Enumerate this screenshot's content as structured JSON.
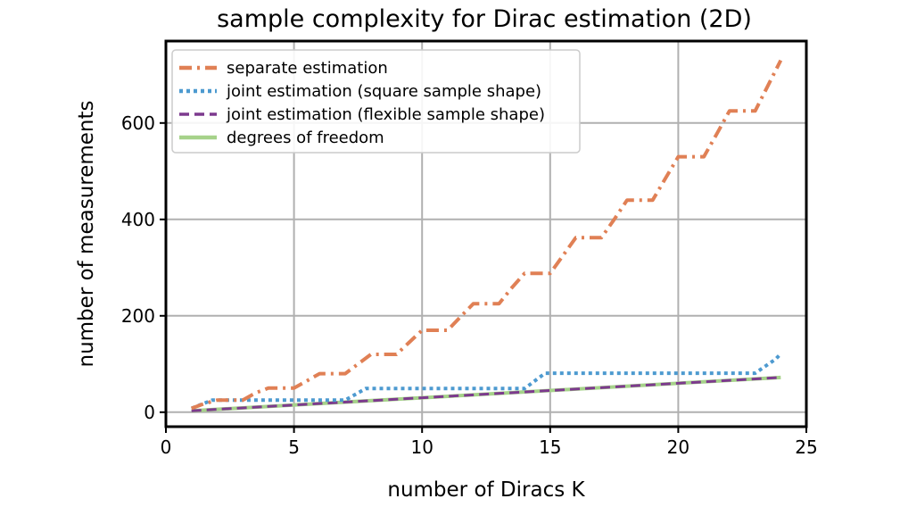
{
  "chart_data": {
    "type": "line",
    "title": "sample complexity for Dirac estimation (2D)",
    "xlabel": "number of Diracs K",
    "ylabel": "number of measurements",
    "xlim": [
      0,
      25
    ],
    "ylim": [
      -30,
      770
    ],
    "xticks": [
      0,
      5,
      10,
      15,
      20,
      25
    ],
    "yticks": [
      0,
      200,
      400,
      600
    ],
    "grid": true,
    "legend_position": "top-left",
    "series": [
      {
        "name": "separate estimation",
        "style": "dash-dot",
        "color": "#e08055",
        "x": [
          1,
          1.5,
          2,
          3,
          3.5,
          4,
          5,
          5.5,
          6,
          7,
          7.5,
          8,
          9,
          9.5,
          10,
          11,
          11.5,
          12,
          13,
          13.5,
          14,
          15,
          15.5,
          16,
          17,
          17.5,
          18,
          19,
          19.5,
          20,
          21,
          21.5,
          22,
          23,
          24
        ],
        "y": [
          8,
          18,
          25,
          25,
          40,
          50,
          50,
          65,
          80,
          80,
          100,
          120,
          120,
          145,
          170,
          170,
          198,
          225,
          225,
          258,
          288,
          288,
          325,
          362,
          362,
          400,
          440,
          440,
          485,
          530,
          530,
          577,
          625,
          625,
          730
        ]
      },
      {
        "name": "joint estimation (square sample shape)",
        "style": "dotted",
        "color": "#4d9ad0",
        "x": [
          1,
          1.8,
          2,
          7,
          7.8,
          8,
          14,
          14.8,
          15,
          23,
          23.8,
          24
        ],
        "y": [
          8,
          25,
          25,
          25,
          49,
          49,
          49,
          81,
          81,
          81,
          110,
          121
        ]
      },
      {
        "name": "joint estimation (flexible sample shape)",
        "style": "dashed",
        "color": "#7d3a8e",
        "x": [
          1,
          24
        ],
        "y": [
          3,
          72
        ]
      },
      {
        "name": "degrees of freedom",
        "style": "solid",
        "color": "#a6d28a",
        "x": [
          1,
          24
        ],
        "y": [
          3,
          72
        ]
      }
    ]
  }
}
